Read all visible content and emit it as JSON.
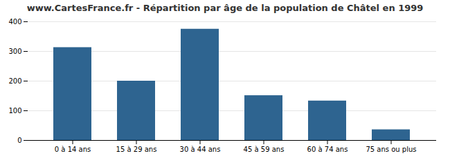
{
  "chart_data": {
    "type": "bar",
    "title": "www.CartesFrance.fr - Répartition par âge de la population de Châtel en 1999",
    "categories": [
      "0 à 14 ans",
      "15 à 29 ans",
      "30 à 44 ans",
      "45 à 59 ans",
      "60 à 74 ans",
      "75 ans ou plus"
    ],
    "values": [
      313,
      200,
      375,
      151,
      133,
      36
    ],
    "color": "#2e6490",
    "ylim": [
      0,
      400
    ],
    "yticks": [
      0,
      100,
      200,
      300,
      400
    ],
    "grid": true
  }
}
